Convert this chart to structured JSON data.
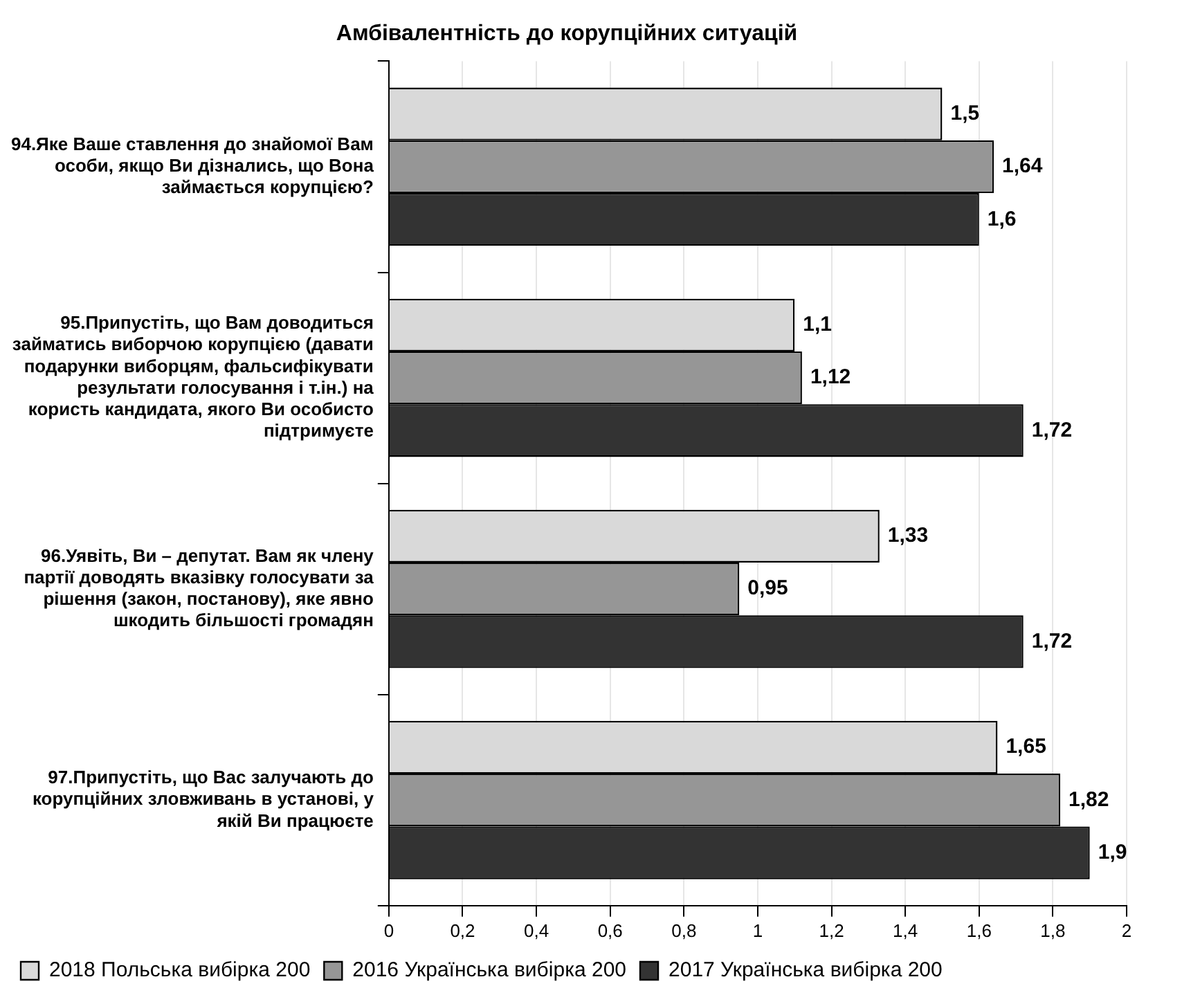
{
  "chart_data": {
    "type": "bar",
    "orientation": "horizontal",
    "title": "Амбівалентність до корупційних ситуацій",
    "categories": [
      "94.Яке Ваше ставлення до знайомої Вам особи, якщо Ви дізнались, що Вона займається корупцією?",
      "95.Припустіть, що Вам доводиться займатись виборчою корупцією (давати подарунки виборцям, фальсифікувати результати голосування і т.ін.) на користь кандидата, якого Ви особисто підтримуєте",
      "96.Уявіть, Ви – депутат. Вам як члену партії доводять вказівку голосувати за рішення (закон, постанову), яке явно шкодить більшості громадян",
      "97.Припустіть, що Вас залучають до корупційних зловживань в установі, у якій Ви працюєте"
    ],
    "series": [
      {
        "name": "2018 Польська вибірка 200",
        "color": "#d9d9d9",
        "values": [
          1.5,
          1.1,
          1.33,
          1.65
        ],
        "value_labels": [
          "1,5",
          "1,1",
          "1,33",
          "1,65"
        ]
      },
      {
        "name": "2016 Українська вибірка 200",
        "color": "#969696",
        "values": [
          1.64,
          1.12,
          0.95,
          1.82
        ],
        "value_labels": [
          "1,64",
          "1,12",
          "0,95",
          "1,82"
        ]
      },
      {
        "name": "2017 Українська вибірка 200",
        "color": "#333333",
        "values": [
          1.6,
          1.72,
          1.72,
          1.9
        ],
        "value_labels": [
          "1,6",
          "1,72",
          "1,72",
          "1,9"
        ]
      }
    ],
    "xlim": [
      0,
      2
    ],
    "xticks": [
      0,
      {
        "value": 0.2,
        "label": "0,2"
      },
      {
        "value": 0.4,
        "label": "0,4"
      },
      {
        "value": 0.6,
        "label": "0,6"
      },
      {
        "value": 0.8,
        "label": "0,8"
      },
      1,
      {
        "value": 1.2,
        "label": "1,2"
      },
      {
        "value": 1.4,
        "label": "1,4"
      },
      {
        "value": 1.6,
        "label": "1,6"
      },
      {
        "value": 1.8,
        "label": "1,8"
      },
      2
    ],
    "grid": "x",
    "legend": "bottom left"
  }
}
